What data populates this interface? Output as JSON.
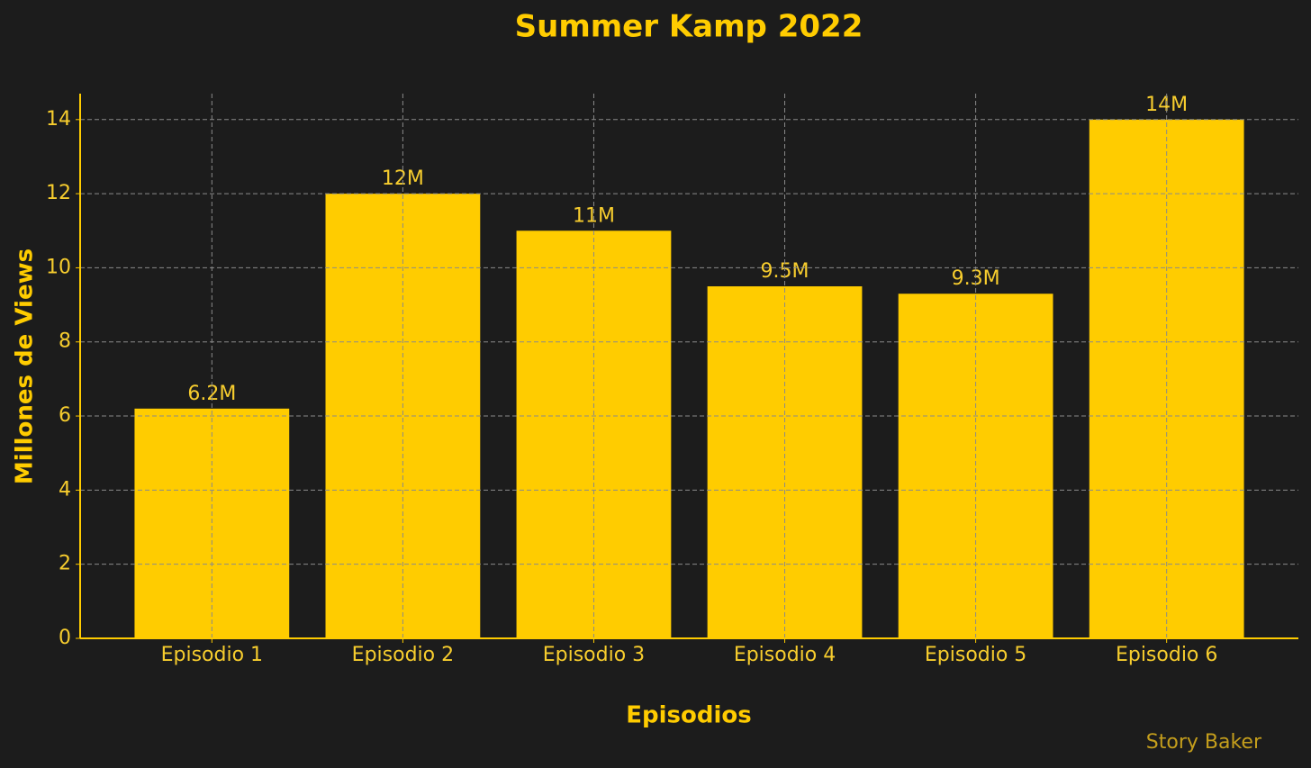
{
  "chart_data": {
    "type": "bar",
    "title": "Summer Kamp 2022",
    "x_label": "Episodios",
    "y_label": "Millones de Views",
    "categories": [
      "Episodio 1",
      "Episodio 2",
      "Episodio 3",
      "Episodio 4",
      "Episodio 5",
      "Episodio 6"
    ],
    "values": [
      6.2,
      12,
      11,
      9.5,
      9.3,
      14
    ],
    "value_labels": [
      "6.2M",
      "12M",
      "11M",
      "9.5M",
      "9.3M",
      "14M"
    ],
    "color": "#ffcc00",
    "ylim": [
      0,
      14.7
    ],
    "yticks": [
      0,
      2,
      4,
      6,
      8,
      10,
      12,
      14
    ],
    "grid": true,
    "watermark": "Story Baker"
  }
}
